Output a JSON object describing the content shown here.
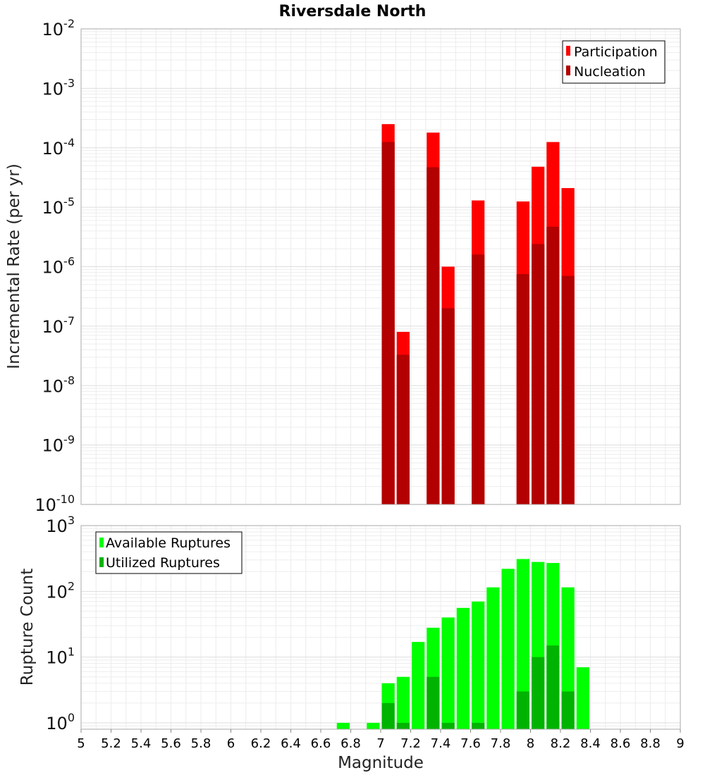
{
  "chart_data": [
    {
      "type": "bar",
      "title": "Riversdale North",
      "xlabel": "",
      "ylabel": "Incremental Rate (per yr)",
      "yscale": "log",
      "xlim": [
        5,
        9
      ],
      "ylim": [
        1e-10,
        0.01
      ],
      "y_ticks": [
        {
          "base": "10",
          "exp": "-2"
        },
        {
          "base": "10",
          "exp": "-3"
        },
        {
          "base": "10",
          "exp": "-4"
        },
        {
          "base": "10",
          "exp": "-5"
        },
        {
          "base": "10",
          "exp": "-6"
        },
        {
          "base": "10",
          "exp": "-7"
        },
        {
          "base": "10",
          "exp": "-8"
        },
        {
          "base": "10",
          "exp": "-9"
        },
        {
          "base": "10",
          "exp": "-10"
        }
      ],
      "grid": true,
      "legend": "top-right",
      "x": [
        7.05,
        7.15,
        7.35,
        7.45,
        7.65,
        7.95,
        8.05,
        8.15,
        8.25
      ],
      "series": [
        {
          "name": "Participation",
          "color": "#ff0000",
          "values": [
            0.00025,
            8e-08,
            0.00018,
            1e-06,
            1.3e-05,
            1.25e-05,
            4.8e-05,
            0.000125,
            2.1e-05
          ]
        },
        {
          "name": "Nucleation",
          "color": "#b30000",
          "values": [
            0.000125,
            3.3e-08,
            4.7e-05,
            2e-07,
            1.6e-06,
            7.5e-07,
            2.4e-06,
            4.7e-06,
            7e-07
          ]
        }
      ]
    },
    {
      "type": "bar",
      "title": "",
      "xlabel": "Magnitude",
      "ylabel": "Rupture Count",
      "yscale": "log",
      "xlim": [
        5,
        9
      ],
      "ylim": [
        0.8,
        1000
      ],
      "x_ticks": [
        "5",
        "5.2",
        "5.4",
        "5.6",
        "5.8",
        "6",
        "6.2",
        "6.4",
        "6.6",
        "6.8",
        "7",
        "7.2",
        "7.4",
        "7.6",
        "7.8",
        "8",
        "8.2",
        "8.4",
        "8.6",
        "8.8",
        "9"
      ],
      "y_ticks": [
        {
          "base": "10",
          "exp": "3"
        },
        {
          "base": "10",
          "exp": "2"
        },
        {
          "base": "10",
          "exp": "1"
        },
        {
          "base": "10",
          "exp": "0"
        }
      ],
      "grid": true,
      "legend": "top-left",
      "x": [
        6.75,
        6.95,
        7.05,
        7.15,
        7.25,
        7.35,
        7.45,
        7.55,
        7.65,
        7.75,
        7.85,
        7.95,
        8.05,
        8.15,
        8.25,
        8.35
      ],
      "series": [
        {
          "name": "Available Ruptures",
          "color": "#00ff00",
          "values": [
            1,
            1,
            4,
            5,
            17,
            28,
            40,
            56,
            70,
            115,
            220,
            310,
            280,
            270,
            115,
            7
          ]
        },
        {
          "name": "Utilized Ruptures",
          "color": "#00b300",
          "values": [
            0,
            0,
            2,
            1,
            0,
            5,
            1,
            0,
            1,
            0,
            0,
            3,
            10,
            15,
            3,
            0
          ]
        }
      ]
    }
  ]
}
